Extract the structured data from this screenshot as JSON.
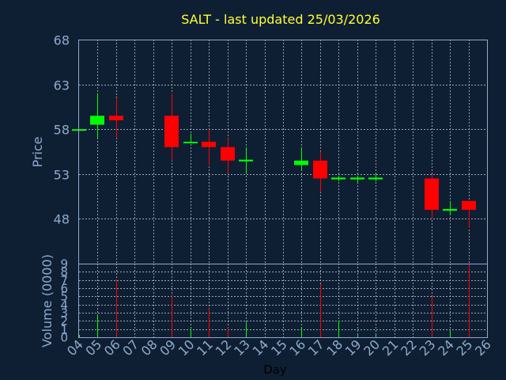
{
  "chart_data": {
    "type": "candlestick",
    "title": "SALT - last updated 25/03/2026",
    "xlabel": "Day",
    "ylabel": "Price",
    "volume_label": "Volume (0000)",
    "x_ticks": [
      "04",
      "05",
      "06",
      "07",
      "08",
      "09",
      "10",
      "11",
      "12",
      "13",
      "14",
      "15",
      "16",
      "17",
      "18",
      "19",
      "20",
      "21",
      "22",
      "23",
      "24",
      "25",
      "26"
    ],
    "price_ticks": [
      48,
      53,
      58,
      63,
      68
    ],
    "price_range": [
      43,
      68
    ],
    "volume_ticks": [
      0,
      1,
      2,
      3,
      4,
      5,
      6,
      7,
      8,
      9
    ],
    "volume_range": [
      0,
      9
    ],
    "grid": true,
    "colors": {
      "up": "#00ff00",
      "down": "#ff0000",
      "text": "#8eaacc",
      "title": "#ffff33",
      "background": "#0f1f33"
    },
    "candles": [
      {
        "day": 4,
        "open": 58.0,
        "high": 58.0,
        "low": 58.0,
        "close": 58.0,
        "volume": 0.3
      },
      {
        "day": 5,
        "open": 58.5,
        "high": 62.0,
        "low": 57.0,
        "close": 59.5,
        "volume": 2.8
      },
      {
        "day": 6,
        "open": 59.5,
        "high": 61.5,
        "low": 57.0,
        "close": 59.0,
        "volume": 7.0
      },
      {
        "day": 9,
        "open": 59.5,
        "high": 62.0,
        "low": 54.5,
        "close": 56.0,
        "volume": 5.2
      },
      {
        "day": 10,
        "open": 56.5,
        "high": 57.5,
        "low": 56.5,
        "close": 56.6,
        "volume": 1.0
      },
      {
        "day": 11,
        "open": 56.6,
        "high": 58.0,
        "low": 54.0,
        "close": 56.0,
        "volume": 3.5
      },
      {
        "day": 12,
        "open": 56.0,
        "high": 57.0,
        "low": 53.0,
        "close": 54.5,
        "volume": 1.2
      },
      {
        "day": 13,
        "open": 54.4,
        "high": 56.0,
        "low": 53.0,
        "close": 54.6,
        "volume": 1.8
      },
      {
        "day": 16,
        "open": 54.0,
        "high": 56.0,
        "low": 53.5,
        "close": 54.5,
        "volume": 1.2
      },
      {
        "day": 17,
        "open": 54.5,
        "high": 55.5,
        "low": 51.0,
        "close": 52.5,
        "volume": 6.5
      },
      {
        "day": 18,
        "open": 52.4,
        "high": 52.8,
        "low": 52.2,
        "close": 52.6,
        "volume": 2.0
      },
      {
        "day": 19,
        "open": 52.4,
        "high": 52.8,
        "low": 52.0,
        "close": 52.6,
        "volume": 0.3
      },
      {
        "day": 20,
        "open": 52.4,
        "high": 53.0,
        "low": 52.2,
        "close": 52.6,
        "volume": 0.3
      },
      {
        "day": 23,
        "open": 52.5,
        "high": 53.0,
        "low": 48.0,
        "close": 49.0,
        "volume": 5.0
      },
      {
        "day": 24,
        "open": 48.9,
        "high": 50.0,
        "low": 48.5,
        "close": 49.1,
        "volume": 0.8
      },
      {
        "day": 25,
        "open": 50.0,
        "high": 50.0,
        "low": 47.0,
        "close": 49.0,
        "volume": 9.0
      }
    ]
  }
}
